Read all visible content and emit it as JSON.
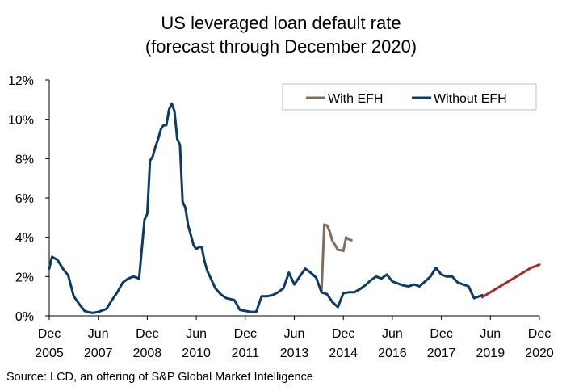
{
  "title_line1": "US leveraged loan default rate",
  "title_line2": "(forecast through December 2020)",
  "source": "Source: LCD, an offering of S&P Global Market Intelligence",
  "chart_data": {
    "type": "line",
    "title": "US leveraged loan default rate (forecast through December 2020)",
    "xlabel": "",
    "ylabel": "",
    "ylim": [
      0,
      12
    ],
    "xlim": [
      "2005-12",
      "2020-12"
    ],
    "y_ticks": [
      "0%",
      "2%",
      "4%",
      "6%",
      "8%",
      "10%",
      "12%"
    ],
    "x_ticks": [
      {
        "month": "Dec",
        "year": "2005"
      },
      {
        "month": "Jun",
        "year": "2007"
      },
      {
        "month": "Dec",
        "year": "2008"
      },
      {
        "month": "Jun",
        "year": "2010"
      },
      {
        "month": "Dec",
        "year": "2011"
      },
      {
        "month": "Jun",
        "year": "2013"
      },
      {
        "month": "Dec",
        "year": "2014"
      },
      {
        "month": "Jun",
        "year": "2016"
      },
      {
        "month": "Dec",
        "year": "2017"
      },
      {
        "month": "Jun",
        "year": "2019"
      },
      {
        "month": "Dec",
        "year": "2020"
      }
    ],
    "legend_position": "top-right",
    "grid": false,
    "series": [
      {
        "name": "With EFH",
        "color": "#7f6e5c",
        "x": [
          "2014-04",
          "2014-05",
          "2014-06",
          "2014-07",
          "2014-08",
          "2014-09",
          "2014-10",
          "2014-11",
          "2014-12",
          "2015-01",
          "2015-02",
          "2015-03"
        ],
        "y": [
          1.2,
          4.65,
          4.6,
          4.3,
          3.8,
          3.6,
          3.35,
          3.35,
          3.3,
          4.0,
          3.9,
          3.85
        ]
      },
      {
        "name": "Without EFH",
        "color": "#0d3b66",
        "x": [
          "2005-12",
          "2006-01",
          "2006-03",
          "2006-05",
          "2006-07",
          "2006-09",
          "2006-11",
          "2007-01",
          "2007-02",
          "2007-04",
          "2007-06",
          "2007-09",
          "2007-11",
          "2008-01",
          "2008-03",
          "2008-05",
          "2008-07",
          "2008-09",
          "2008-11",
          "2008-12",
          "2009-01",
          "2009-02",
          "2009-03",
          "2009-04",
          "2009-05",
          "2009-06",
          "2009-07",
          "2009-08",
          "2009-09",
          "2009-10",
          "2009-11",
          "2009-12",
          "2010-01",
          "2010-02",
          "2010-03",
          "2010-04",
          "2010-05",
          "2010-06",
          "2010-07",
          "2010-08",
          "2010-09",
          "2010-10",
          "2010-11",
          "2011-01",
          "2011-03",
          "2011-05",
          "2011-08",
          "2011-10",
          "2011-12",
          "2012-02",
          "2012-04",
          "2012-06",
          "2012-08",
          "2012-10",
          "2012-12",
          "2013-02",
          "2013-04",
          "2013-06",
          "2013-08",
          "2013-10",
          "2013-12",
          "2014-02",
          "2014-04",
          "2014-06",
          "2014-08",
          "2014-10",
          "2014-12",
          "2015-02",
          "2015-04",
          "2015-06",
          "2015-08",
          "2015-10",
          "2015-12",
          "2016-02",
          "2016-04",
          "2016-06",
          "2016-08",
          "2016-10",
          "2016-12",
          "2017-02",
          "2017-04",
          "2017-06",
          "2017-08",
          "2017-10",
          "2017-12",
          "2018-02",
          "2018-04",
          "2018-06",
          "2018-08",
          "2018-10",
          "2018-12",
          "2019-02",
          "2019-03"
        ],
        "y": [
          2.4,
          3.0,
          2.85,
          2.4,
          2.05,
          1.0,
          0.6,
          0.25,
          0.2,
          0.15,
          0.2,
          0.35,
          0.8,
          1.2,
          1.7,
          1.9,
          2.0,
          1.9,
          4.9,
          5.2,
          7.9,
          8.1,
          8.6,
          9.0,
          9.5,
          9.7,
          9.7,
          10.5,
          10.8,
          10.4,
          9.0,
          8.7,
          5.8,
          5.5,
          4.6,
          4.1,
          3.6,
          3.4,
          3.5,
          3.5,
          2.8,
          2.3,
          2.0,
          1.4,
          1.1,
          0.9,
          0.8,
          0.3,
          0.25,
          0.2,
          0.2,
          1.0,
          1.0,
          1.05,
          1.2,
          1.4,
          2.2,
          1.6,
          2.0,
          2.4,
          2.2,
          1.95,
          1.2,
          1.1,
          0.7,
          0.45,
          1.15,
          1.2,
          1.2,
          1.35,
          1.55,
          1.8,
          2.0,
          1.9,
          2.1,
          1.75,
          1.65,
          1.55,
          1.5,
          1.6,
          1.5,
          1.75,
          2.0,
          2.45,
          2.1,
          2.0,
          2.0,
          1.7,
          1.6,
          1.5,
          0.9,
          1.0,
          1.05
        ]
      },
      {
        "name": "",
        "color": "#a52a2a",
        "x": [
          "2019-03",
          "2019-06",
          "2019-09",
          "2019-12",
          "2020-03",
          "2020-06",
          "2020-09",
          "2020-12"
        ],
        "y": [
          0.95,
          1.2,
          1.45,
          1.7,
          1.95,
          2.2,
          2.45,
          2.6
        ]
      }
    ]
  }
}
